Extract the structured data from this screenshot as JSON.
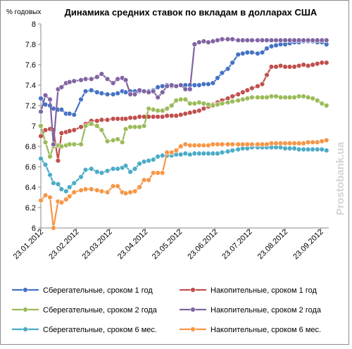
{
  "chart_data": {
    "type": "line",
    "title": "Динамика средних ставок по вкладам в долларах США",
    "ylabel": "% годовых",
    "ylim": [
      6,
      8
    ],
    "yticks": [
      "6",
      "6.2",
      "6.4",
      "6.6",
      "6.8",
      "7",
      "7.2",
      "7.4",
      "7.6",
      "7.8",
      "8"
    ],
    "xlim": [
      "2012-01-23",
      "2012-09-30"
    ],
    "xticks": [
      {
        "date": "2012-01-23",
        "label": "23.01.2012"
      },
      {
        "date": "2012-02-23",
        "label": "23.02.2012"
      },
      {
        "date": "2012-03-23",
        "label": "23.03.2012"
      },
      {
        "date": "2012-04-23",
        "label": "23.04.2012"
      },
      {
        "date": "2012-05-23",
        "label": "23.05.2012"
      },
      {
        "date": "2012-06-23",
        "label": "23.06.2012"
      },
      {
        "date": "2012-07-23",
        "label": "23.07.2012"
      },
      {
        "date": "2012-08-23",
        "label": "23.08.2012"
      },
      {
        "date": "2012-09-23",
        "label": "23.09.2012"
      }
    ],
    "grid": false,
    "legend_position": "bottom",
    "watermark": "Prostobank.ua",
    "x": [
      "2012-01-23",
      "2012-01-27",
      "2012-01-31",
      "2012-02-03",
      "2012-02-07",
      "2012-02-10",
      "2012-02-14",
      "2012-02-17",
      "2012-02-21",
      "2012-02-27",
      "2012-03-02",
      "2012-03-07",
      "2012-03-12",
      "2012-03-16",
      "2012-03-21",
      "2012-03-26",
      "2012-03-30",
      "2012-04-03",
      "2012-04-06",
      "2012-04-10",
      "2012-04-14",
      "2012-04-18",
      "2012-04-22",
      "2012-04-26",
      "2012-04-30",
      "2012-05-04",
      "2012-05-08",
      "2012-05-12",
      "2012-05-16",
      "2012-05-20",
      "2012-05-24",
      "2012-05-28",
      "2012-06-01",
      "2012-06-05",
      "2012-06-09",
      "2012-06-13",
      "2012-06-17",
      "2012-06-21",
      "2012-06-25",
      "2012-06-29",
      "2012-07-04",
      "2012-07-08",
      "2012-07-13",
      "2012-07-17",
      "2012-07-21",
      "2012-07-25",
      "2012-07-30",
      "2012-08-03",
      "2012-08-07",
      "2012-08-11",
      "2012-08-15",
      "2012-08-19",
      "2012-08-23",
      "2012-08-27",
      "2012-08-31",
      "2012-09-04",
      "2012-09-08",
      "2012-09-12",
      "2012-09-16",
      "2012-09-20",
      "2012-09-24",
      "2012-09-28"
    ],
    "series": [
      {
        "name": "Сберегательные, сроком 1 год",
        "color": "#4472c4",
        "values": [
          7.27,
          7.21,
          7.2,
          7.17,
          7.16,
          7.16,
          7.12,
          7.12,
          7.11,
          7.26,
          7.34,
          7.35,
          7.33,
          7.32,
          7.31,
          7.31,
          7.32,
          7.34,
          7.33,
          7.34,
          7.34,
          7.34,
          7.34,
          7.34,
          7.35,
          7.38,
          7.39,
          7.4,
          7.39,
          7.39,
          7.4,
          7.4,
          7.4,
          7.4,
          7.4,
          7.41,
          7.41,
          7.42,
          7.47,
          7.52,
          7.56,
          7.62,
          7.7,
          7.71,
          7.72,
          7.72,
          7.71,
          7.72,
          7.76,
          7.78,
          7.79,
          7.8,
          7.8,
          7.81,
          7.82,
          7.82,
          7.83,
          7.83,
          7.83,
          7.82,
          7.82,
          7.8
        ]
      },
      {
        "name": "Накопительные, сроком 1 год",
        "color": "#c0504d",
        "values": [
          6.9,
          6.96,
          6.97,
          6.96,
          6.66,
          6.93,
          6.94,
          6.95,
          6.96,
          6.99,
          7.02,
          7.05,
          7.05,
          7.06,
          7.06,
          7.07,
          7.07,
          7.07,
          7.07,
          7.08,
          7.08,
          7.09,
          7.09,
          7.09,
          7.09,
          7.09,
          7.09,
          7.1,
          7.1,
          7.1,
          7.11,
          7.12,
          7.13,
          7.14,
          7.15,
          7.17,
          7.19,
          7.21,
          7.23,
          7.25,
          7.27,
          7.29,
          7.31,
          7.33,
          7.35,
          7.37,
          7.39,
          7.41,
          7.5,
          7.58,
          7.58,
          7.59,
          7.58,
          7.58,
          7.58,
          7.59,
          7.6,
          7.59,
          7.6,
          7.61,
          7.62,
          7.62
        ]
      },
      {
        "name": "Сберегательные, сроком 2 года",
        "color": "#9bbb59",
        "values": [
          7.0,
          6.84,
          6.7,
          6.8,
          6.81,
          6.8,
          6.81,
          6.82,
          6.82,
          6.82,
          7.0,
          7.02,
          7.0,
          6.96,
          6.85,
          6.86,
          6.87,
          6.84,
          6.97,
          6.99,
          6.99,
          6.99,
          7.0,
          7.17,
          7.16,
          7.15,
          7.15,
          7.17,
          7.2,
          7.25,
          7.26,
          7.26,
          7.22,
          7.22,
          7.23,
          7.22,
          7.21,
          7.2,
          7.21,
          7.22,
          7.23,
          7.24,
          7.25,
          7.26,
          7.27,
          7.28,
          7.28,
          7.28,
          7.28,
          7.29,
          7.29,
          7.28,
          7.28,
          7.28,
          7.28,
          7.29,
          7.29,
          7.28,
          7.27,
          7.25,
          7.22,
          7.2
        ]
      },
      {
        "name": "Накопительные, сроком 2 года",
        "color": "#8064a2",
        "values": [
          7.14,
          7.3,
          7.26,
          6.82,
          7.36,
          7.38,
          7.42,
          7.43,
          7.44,
          7.45,
          7.46,
          7.46,
          7.48,
          7.51,
          7.46,
          7.42,
          7.46,
          7.47,
          7.45,
          7.31,
          7.31,
          7.35,
          7.34,
          7.33,
          7.34,
          7.28,
          7.33,
          7.39,
          7.4,
          7.39,
          7.4,
          7.36,
          7.36,
          7.8,
          7.82,
          7.83,
          7.82,
          7.83,
          7.84,
          7.85,
          7.85,
          7.85,
          7.84,
          7.84,
          7.84,
          7.84,
          7.84,
          7.84,
          7.84,
          7.84,
          7.84,
          7.84,
          7.84,
          7.84,
          7.84,
          7.84,
          7.84,
          7.84,
          7.84,
          7.84,
          7.84,
          7.84
        ]
      },
      {
        "name": "Сберегательные, сроком 6 мес.",
        "color": "#4bacc6",
        "values": [
          6.68,
          6.62,
          6.52,
          6.44,
          6.43,
          6.38,
          6.36,
          6.4,
          6.44,
          6.5,
          6.57,
          6.58,
          6.55,
          6.54,
          6.56,
          6.58,
          6.58,
          6.59,
          6.61,
          6.55,
          6.58,
          6.63,
          6.65,
          6.66,
          6.67,
          6.7,
          6.71,
          6.71,
          6.71,
          6.72,
          6.72,
          6.73,
          6.72,
          6.73,
          6.73,
          6.73,
          6.73,
          6.73,
          6.73,
          6.74,
          6.75,
          6.76,
          6.77,
          6.78,
          6.78,
          6.79,
          6.79,
          6.79,
          6.79,
          6.79,
          6.79,
          6.79,
          6.78,
          6.78,
          6.78,
          6.77,
          6.77,
          6.77,
          6.77,
          6.77,
          6.77,
          6.76
        ]
      },
      {
        "name": "Накопительные, сроком 6 мес.",
        "color": "#f79646",
        "values": [
          6.27,
          6.32,
          6.3,
          6.0,
          6.26,
          6.25,
          6.28,
          6.31,
          6.35,
          6.37,
          6.38,
          6.38,
          6.37,
          6.36,
          6.35,
          6.41,
          6.41,
          6.35,
          6.34,
          6.35,
          6.36,
          6.4,
          6.47,
          6.47,
          6.54,
          6.54,
          6.54,
          6.74,
          6.74,
          6.76,
          6.8,
          6.82,
          6.81,
          6.81,
          6.81,
          6.81,
          6.81,
          6.82,
          6.82,
          6.82,
          6.82,
          6.82,
          6.82,
          6.82,
          6.82,
          6.82,
          6.82,
          6.82,
          6.82,
          6.83,
          6.83,
          6.83,
          6.83,
          6.83,
          6.83,
          6.83,
          6.83,
          6.84,
          6.84,
          6.84,
          6.85,
          6.86
        ]
      }
    ]
  }
}
